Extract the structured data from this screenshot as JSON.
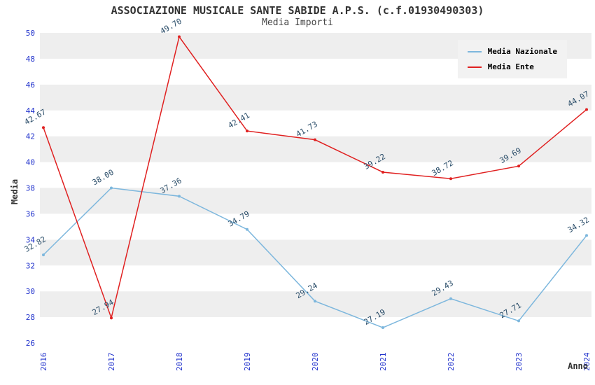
{
  "chart_data": {
    "type": "line",
    "title": "ASSOCIAZIONE MUSICALE SANTE SABIDE A.P.S. (c.f.01930490303)",
    "subtitle": "Media Importi",
    "xlabel": "Anno",
    "ylabel": "Media",
    "categories": [
      "2016",
      "2017",
      "2018",
      "2019",
      "2020",
      "2021",
      "2022",
      "2023",
      "2024"
    ],
    "series": [
      {
        "name": "Media Nazionale",
        "color": "#7db7dd",
        "values": [
          32.82,
          38.0,
          37.36,
          34.79,
          29.24,
          27.19,
          29.43,
          27.71,
          34.32
        ]
      },
      {
        "name": "Media Ente",
        "color": "#e02020",
        "values": [
          42.67,
          27.94,
          49.7,
          42.41,
          41.73,
          39.22,
          38.72,
          39.69,
          44.07
        ]
      }
    ],
    "ylim": [
      26,
      50
    ],
    "ytick_step": 2,
    "grid": "horizontal-bands",
    "legend_position": "top-right",
    "colors": {
      "band_alt": "#eeeeee",
      "band_main": "#ffffff",
      "tick_label": "#2233cc",
      "data_label": "#2a4d69",
      "axis_title": "#333333"
    }
  }
}
